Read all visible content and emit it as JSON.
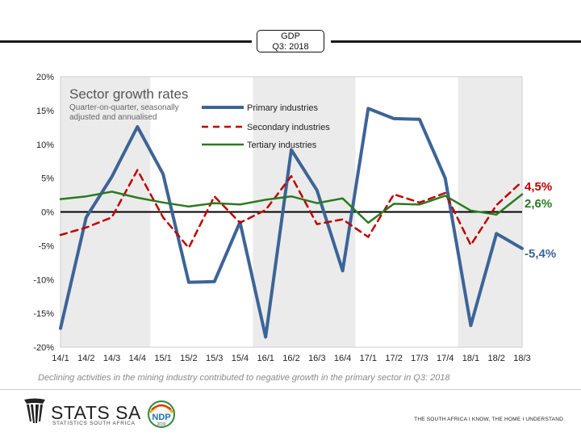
{
  "header": {
    "badge_line1": "GDP",
    "badge_line2": "Q3: 2018"
  },
  "chart_data": {
    "type": "line",
    "title": "Sector growth rates",
    "subtitle_line1": "Quarter-on-quarter, seasonally",
    "subtitle_line2": "adjusted and annualised",
    "xlabel": "",
    "ylabel": "",
    "ylim": [
      -20,
      20
    ],
    "yticks": [
      "-20%",
      "-15%",
      "-10%",
      "-5%",
      "0%",
      "5%",
      "10%",
      "15%",
      "20%"
    ],
    "categories": [
      "14/1",
      "14/2",
      "14/3",
      "14/4",
      "15/1",
      "15/2",
      "15/3",
      "15/4",
      "16/1",
      "16/2",
      "16/3",
      "16/4",
      "17/1",
      "17/2",
      "17/3",
      "17/4",
      "18/1",
      "18/2",
      "18/3"
    ],
    "shaded_years": [
      "14",
      "16",
      "18"
    ],
    "series": [
      {
        "name": "Primary industries",
        "color": "#3d6497",
        "dash": "solid",
        "values": [
          -17.2,
          -0.8,
          5.2,
          12.6,
          5.6,
          -10.4,
          -10.3,
          -1.5,
          -18.5,
          9.2,
          3.2,
          -8.7,
          15.3,
          13.8,
          13.7,
          5.0,
          -16.8,
          -3.2,
          -5.4
        ]
      },
      {
        "name": "Secondary industries",
        "color": "#c00000",
        "dash": "dashed",
        "values": [
          -3.4,
          -2.3,
          -0.8,
          6.2,
          -0.8,
          -5.3,
          2.3,
          -1.6,
          0.3,
          5.3,
          -1.8,
          -1.1,
          -3.7,
          2.6,
          1.4,
          2.8,
          -4.9,
          1.0,
          4.5
        ]
      },
      {
        "name": "Tertiary industries",
        "color": "#2a7a1f",
        "dash": "solid",
        "values": [
          1.9,
          2.3,
          3.0,
          2.1,
          1.4,
          0.8,
          1.3,
          1.1,
          1.8,
          2.3,
          1.3,
          2.0,
          -1.6,
          1.2,
          1.1,
          2.4,
          0.2,
          -0.4,
          2.6
        ]
      }
    ],
    "end_labels": [
      {
        "text": "4,5%",
        "color": "#c00000"
      },
      {
        "text": "2,6%",
        "color": "#2a7a1f"
      },
      {
        "text": "-5,4%",
        "color": "#3d6497"
      }
    ]
  },
  "caption": "Declining activities in the mining industry contributed to negative growth in the primary sector in Q3: 2018",
  "footer": {
    "logo_text": "STATS SA",
    "logo_sub": "STATISTICS SOUTH AFRICA",
    "ndp_label": "NDP",
    "ndp_year": "2030",
    "tagline": "THE SOUTH AFRICA I KNOW, THE HOME I UNDERSTAND"
  },
  "colors": {
    "shade": "#ebebeb",
    "zero_line": "#000000",
    "grid_border": "#cfcfcf"
  }
}
